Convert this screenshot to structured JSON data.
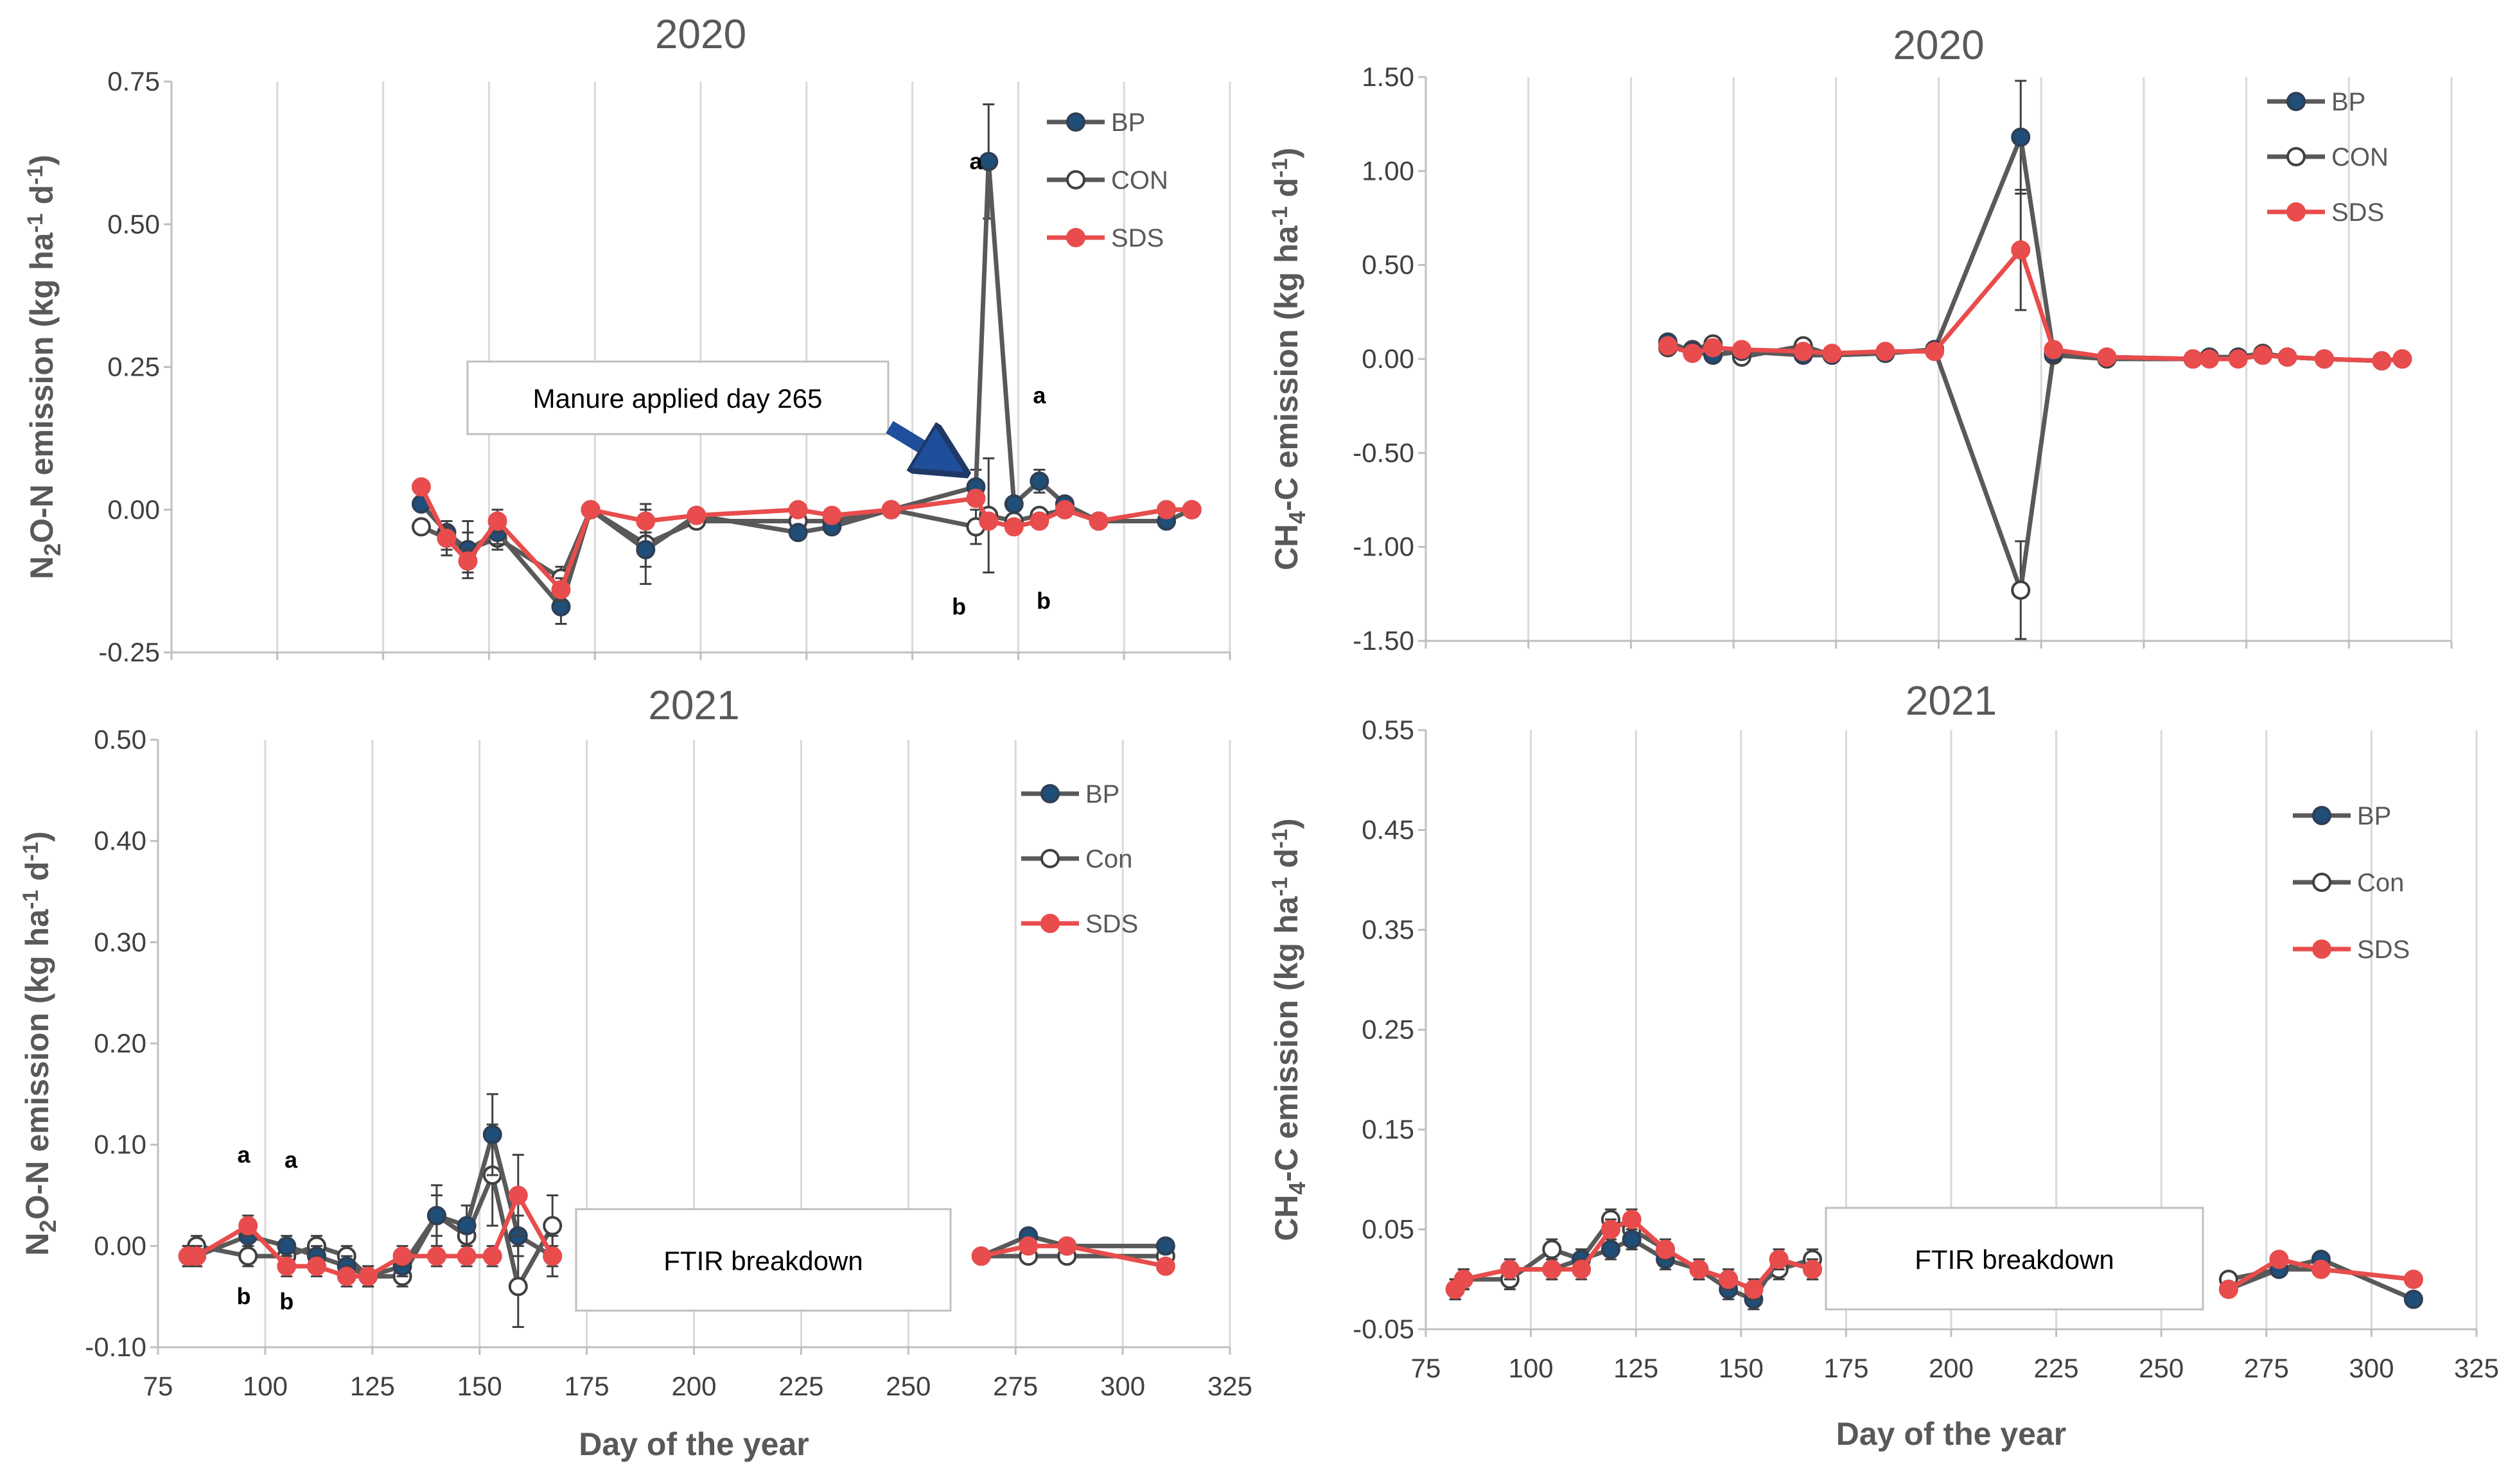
{
  "figure": {
    "x_axis_title": "Day of the year",
    "legend_colors": {
      "BP": "#1F4E79",
      "CON": "#404040",
      "SDS": "#E84C4C"
    },
    "line_colors": {
      "BP": "#595959",
      "CON": "#595959",
      "SDS": "#E84C4C"
    }
  },
  "chart_data": [
    {
      "id": "n2o-2020",
      "type": "line",
      "title": "2020",
      "ylabel_html": "N<tspan font-size='36' dy='12'>2</tspan><tspan dy='-12'>O-N  emission (kg ha</tspan><tspan font-size='34' dy='-16'>-1</tspan><tspan dy='16'> d</tspan><tspan font-size='34' dy='-16'>-1</tspan><tspan dy='16'>)</tspan>",
      "xlim": [
        75,
        325
      ],
      "ylim": [
        -0.25,
        0.75
      ],
      "yticks": [
        -0.25,
        0.0,
        0.25,
        0.5,
        0.75
      ],
      "ytick_labels": [
        "-0.25",
        "0.00",
        "0.25",
        "0.50",
        "0.75"
      ],
      "xticks": [
        75,
        100,
        125,
        150,
        175,
        200,
        225,
        250,
        275,
        300,
        325
      ],
      "xtick_labels": [],
      "legend": [
        "BP",
        "CON",
        "SDS"
      ],
      "series": [
        {
          "name": "BP",
          "x": [
            134,
            140,
            145,
            152,
            167,
            174,
            187,
            199,
            223,
            231,
            245,
            265,
            268,
            274,
            280,
            286,
            294,
            310,
            316
          ],
          "y": [
            0.01,
            -0.04,
            -0.07,
            -0.04,
            -0.17,
            0.0,
            -0.07,
            -0.01,
            -0.04,
            -0.03,
            0.0,
            0.04,
            0.61,
            0.01,
            0.05,
            0.01,
            -0.02,
            -0.02,
            0.0
          ],
          "err": [
            0.01,
            0.02,
            0.03,
            0.02,
            0.03,
            0.01,
            0.03,
            0.01,
            0.01,
            0.01,
            0.01,
            0.03,
            0.1,
            0.01,
            0.02,
            0.01,
            0.01,
            0.01,
            0.01
          ]
        },
        {
          "name": "CON",
          "x": [
            134,
            140,
            145,
            152,
            167,
            174,
            187,
            199,
            223,
            231,
            245,
            265,
            268,
            274,
            280,
            286,
            294,
            310,
            316
          ],
          "y": [
            -0.03,
            -0.05,
            -0.07,
            -0.05,
            -0.12,
            0.0,
            -0.06,
            -0.02,
            -0.02,
            -0.02,
            0.0,
            -0.03,
            -0.01,
            -0.02,
            -0.01,
            0.0,
            -0.02,
            0.0,
            0.0
          ],
          "err": [
            0.01,
            0.03,
            0.05,
            0.02,
            0.02,
            0.01,
            0.07,
            0.01,
            0.01,
            0.01,
            0.01,
            0.03,
            0.1,
            0.01,
            0.01,
            0.01,
            0.01,
            0.01,
            0.01
          ]
        },
        {
          "name": "SDS",
          "x": [
            134,
            140,
            145,
            152,
            167,
            174,
            187,
            199,
            223,
            231,
            245,
            265,
            268,
            274,
            280,
            286,
            294,
            310,
            316
          ],
          "y": [
            0.04,
            -0.05,
            -0.09,
            -0.02,
            -0.14,
            0.0,
            -0.02,
            -0.01,
            0.0,
            -0.01,
            0.0,
            0.02,
            -0.02,
            -0.03,
            -0.02,
            0.0,
            -0.02,
            0.0,
            0.0
          ],
          "err": [
            0.01,
            0.02,
            0.02,
            0.02,
            0.02,
            0.01,
            0.02,
            0.01,
            0.01,
            0.01,
            0.01,
            0.01,
            0.01,
            0.01,
            0.01,
            0.01,
            0.01,
            0.01,
            0.01
          ]
        }
      ],
      "annotations": [
        {
          "text": "a",
          "x": 265,
          "y": 0.61
        },
        {
          "text": "a",
          "x": 280,
          "y": 0.2
        },
        {
          "text": "b",
          "x": 261,
          "y": -0.17
        },
        {
          "text": "b",
          "x": 281,
          "y": -0.16
        }
      ],
      "callout": {
        "text": "Manure applied day 265",
        "arrow_to_day": 265,
        "arrow_to_y": 0.07
      }
    },
    {
      "id": "ch4-2020",
      "type": "line",
      "title": "2020",
      "ylabel_html": "CH<tspan font-size='36' dy='12'>4</tspan><tspan dy='-12'>-C  emission (kg ha</tspan><tspan font-size='34' dy='-16'>-1</tspan><tspan dy='16'> d</tspan><tspan font-size='34' dy='-16'>-1</tspan><tspan dy='16'>)</tspan>",
      "xlim": [
        75,
        325
      ],
      "ylim": [
        -1.5,
        1.5
      ],
      "yticks": [
        -1.5,
        -1.0,
        -0.5,
        0.0,
        0.5,
        1.0,
        1.5
      ],
      "ytick_labels": [
        "-1.50",
        "-1.00",
        "-0.50",
        "0.00",
        "0.50",
        "1.00",
        "1.50"
      ],
      "xticks": [
        75,
        100,
        125,
        150,
        175,
        200,
        225,
        250,
        275,
        300,
        325
      ],
      "xtick_labels": [],
      "legend": [
        "BP",
        "CON",
        "SDS"
      ],
      "series": [
        {
          "name": "BP",
          "x": [
            134,
            140,
            145,
            152,
            167,
            174,
            187,
            199,
            220,
            228,
            241,
            262,
            266,
            273,
            279,
            285,
            294,
            308,
            313
          ],
          "y": [
            0.09,
            0.04,
            0.02,
            0.04,
            0.02,
            0.02,
            0.03,
            0.05,
            1.18,
            0.03,
            0.01,
            0.0,
            0.01,
            0.01,
            0.02,
            0.01,
            0.0,
            -0.01,
            0.0
          ],
          "err": [
            0.02,
            0.01,
            0.01,
            0.01,
            0.01,
            0.01,
            0.01,
            0.01,
            0.3,
            0.01,
            0.01,
            0.01,
            0.01,
            0.01,
            0.01,
            0.01,
            0.01,
            0.01,
            0.01
          ]
        },
        {
          "name": "CON",
          "x": [
            134,
            140,
            145,
            152,
            167,
            174,
            187,
            199,
            220,
            228,
            241,
            262,
            266,
            273,
            279,
            285,
            294,
            308,
            313
          ],
          "y": [
            0.06,
            0.05,
            0.08,
            0.01,
            0.07,
            0.02,
            0.03,
            0.05,
            -1.23,
            0.02,
            0.0,
            0.0,
            0.01,
            0.01,
            0.03,
            0.01,
            0.0,
            -0.01,
            0.0
          ],
          "err": [
            0.02,
            0.01,
            0.01,
            0.01,
            0.01,
            0.01,
            0.01,
            0.01,
            0.26,
            0.01,
            0.01,
            0.01,
            0.01,
            0.01,
            0.01,
            0.01,
            0.01,
            0.01,
            0.01
          ]
        },
        {
          "name": "SDS",
          "x": [
            134,
            140,
            145,
            152,
            167,
            174,
            187,
            199,
            220,
            228,
            241,
            262,
            266,
            273,
            279,
            285,
            294,
            308,
            313
          ],
          "y": [
            0.07,
            0.03,
            0.06,
            0.05,
            0.04,
            0.03,
            0.04,
            0.04,
            0.58,
            0.05,
            0.01,
            0.0,
            0.0,
            0.0,
            0.02,
            0.01,
            0.0,
            -0.01,
            0.0
          ],
          "err": [
            0.01,
            0.01,
            0.01,
            0.01,
            0.01,
            0.01,
            0.01,
            0.01,
            0.32,
            0.01,
            0.01,
            0.01,
            0.01,
            0.01,
            0.01,
            0.01,
            0.01,
            0.01,
            0.01
          ]
        }
      ]
    },
    {
      "id": "n2o-2021",
      "type": "line",
      "title": "2021",
      "ylabel_html": "N<tspan font-size='36' dy='12'>2</tspan><tspan dy='-12'>O-N  emission (kg ha</tspan><tspan font-size='34' dy='-16'>-1</tspan><tspan dy='16'> d</tspan><tspan font-size='34' dy='-16'>-1</tspan><tspan dy='16'>)</tspan>",
      "xlabel": "Day of the year",
      "xlim": [
        75,
        325
      ],
      "ylim": [
        -0.1,
        0.5
      ],
      "yticks": [
        -0.1,
        0.0,
        0.1,
        0.2,
        0.3,
        0.4,
        0.5
      ],
      "ytick_labels": [
        "-0.10",
        "0.00",
        "0.10",
        "0.20",
        "0.30",
        "0.40",
        "0.50"
      ],
      "xticks": [
        75,
        100,
        125,
        150,
        175,
        200,
        225,
        250,
        275,
        300,
        325
      ],
      "xtick_labels": [
        "75",
        "100",
        "125",
        "150",
        "175",
        "200",
        "225",
        "250",
        "275",
        "300",
        "325"
      ],
      "legend": [
        "BP",
        "Con",
        "SDS"
      ],
      "series": [
        {
          "name": "BP",
          "x": [
            82,
            84,
            96,
            105,
            112,
            119,
            124,
            132,
            140,
            147,
            153,
            159,
            167
          ],
          "y": [
            -0.01,
            -0.01,
            0.01,
            0.0,
            -0.01,
            -0.02,
            -0.03,
            -0.02,
            0.03,
            0.02,
            0.11,
            0.01,
            -0.01
          ],
          "err": [
            0.01,
            0.01,
            0.01,
            0.01,
            0.01,
            0.01,
            0.01,
            0.01,
            0.02,
            0.02,
            0.04,
            0.02,
            0.02
          ]
        },
        {
          "name": "Con",
          "x": [
            82,
            84,
            96,
            105,
            112,
            119,
            124,
            132,
            140,
            147,
            153,
            159,
            167
          ],
          "y": [
            -0.01,
            0.0,
            -0.01,
            -0.01,
            0.0,
            -0.01,
            -0.03,
            -0.03,
            0.03,
            0.01,
            0.07,
            -0.04,
            0.02
          ],
          "err": [
            0.01,
            0.01,
            0.01,
            0.01,
            0.01,
            0.01,
            0.01,
            0.01,
            0.03,
            0.01,
            0.05,
            0.04,
            0.03
          ]
        },
        {
          "name": "SDS",
          "x": [
            82,
            84,
            96,
            105,
            112,
            119,
            124,
            132,
            140,
            147,
            153,
            159,
            167
          ],
          "y": [
            -0.01,
            -0.01,
            0.02,
            -0.02,
            -0.02,
            -0.03,
            -0.03,
            -0.01,
            -0.01,
            -0.01,
            -0.01,
            0.05,
            -0.01
          ],
          "err": [
            0.01,
            0.01,
            0.01,
            0.01,
            0.01,
            0.01,
            0.01,
            0.01,
            0.01,
            0.01,
            0.01,
            0.04,
            0.01
          ]
        }
      ],
      "series_late": [
        {
          "name": "BP",
          "x": [
            267,
            278,
            287,
            310
          ],
          "y": [
            -0.01,
            0.01,
            0.0,
            0.0
          ]
        },
        {
          "name": "Con",
          "x": [
            267,
            278,
            287,
            310
          ],
          "y": [
            -0.01,
            -0.01,
            -0.01,
            -0.01
          ]
        },
        {
          "name": "SDS",
          "x": [
            267,
            278,
            287,
            310
          ],
          "y": [
            -0.01,
            0.0,
            0.0,
            -0.02
          ]
        }
      ],
      "annotations": [
        {
          "text": "a",
          "x": 95,
          "y": 0.09
        },
        {
          "text": "a",
          "x": 106,
          "y": 0.085
        },
        {
          "text": "b",
          "x": 95,
          "y": -0.05
        },
        {
          "text": "b",
          "x": 105,
          "y": -0.055
        }
      ],
      "breakdown_label": "FTIR breakdown"
    },
    {
      "id": "ch4-2021",
      "type": "line",
      "title": "2021",
      "ylabel_html": "CH<tspan font-size='36' dy='12'>4</tspan><tspan dy='-12'>-C  emission (kg ha</tspan><tspan font-size='34' dy='-16'>-1</tspan><tspan dy='16'> d</tspan><tspan font-size='34' dy='-16'>-1</tspan><tspan dy='16'>)</tspan>",
      "xlabel": "Day of the year",
      "xlim": [
        75,
        325
      ],
      "ylim": [
        -0.05,
        0.55
      ],
      "yticks": [
        -0.05,
        0.05,
        0.15,
        0.25,
        0.35,
        0.45,
        0.55
      ],
      "ytick_labels": [
        "-0.05",
        "0.05",
        "0.15",
        "0.25",
        "0.35",
        "0.45",
        "0.55"
      ],
      "xticks": [
        75,
        100,
        125,
        150,
        175,
        200,
        225,
        250,
        275,
        300,
        325
      ],
      "xtick_labels": [
        "75",
        "100",
        "125",
        "150",
        "175",
        "200",
        "225",
        "250",
        "275",
        "300",
        "325"
      ],
      "legend": [
        "BP",
        "Con",
        "SDS"
      ],
      "series": [
        {
          "name": "BP",
          "x": [
            82,
            84,
            95,
            105,
            112,
            119,
            124,
            132,
            140,
            147,
            153,
            159,
            167
          ],
          "y": [
            -0.01,
            0.0,
            0.01,
            0.01,
            0.02,
            0.03,
            0.04,
            0.02,
            0.01,
            -0.01,
            -0.02,
            0.02,
            0.01
          ],
          "err": [
            0.01,
            0.01,
            0.01,
            0.01,
            0.01,
            0.01,
            0.01,
            0.01,
            0.01,
            0.01,
            0.01,
            0.01,
            0.01
          ]
        },
        {
          "name": "Con",
          "x": [
            82,
            84,
            95,
            105,
            112,
            119,
            124,
            132,
            140,
            147,
            153,
            159,
            167
          ],
          "y": [
            -0.01,
            0.0,
            0.0,
            0.03,
            0.02,
            0.06,
            0.05,
            0.03,
            0.01,
            0.0,
            -0.01,
            0.01,
            0.02
          ],
          "err": [
            0.01,
            0.01,
            0.01,
            0.01,
            0.01,
            0.01,
            0.01,
            0.01,
            0.01,
            0.01,
            0.01,
            0.01,
            0.01
          ]
        },
        {
          "name": "SDS",
          "x": [
            82,
            84,
            95,
            105,
            112,
            119,
            124,
            132,
            140,
            147,
            153,
            159,
            167
          ],
          "y": [
            -0.01,
            0.0,
            0.01,
            0.01,
            0.01,
            0.05,
            0.06,
            0.03,
            0.01,
            0.0,
            -0.01,
            0.02,
            0.01
          ],
          "err": [
            0.01,
            0.01,
            0.01,
            0.01,
            0.01,
            0.01,
            0.01,
            0.01,
            0.01,
            0.01,
            0.01,
            0.01,
            0.01
          ]
        }
      ],
      "series_late": [
        {
          "name": "BP",
          "x": [
            266,
            278,
            288,
            310
          ],
          "y": [
            -0.01,
            0.01,
            0.02,
            -0.02
          ]
        },
        {
          "name": "Con",
          "x": [
            266,
            278,
            288,
            310
          ],
          "y": [
            0.0,
            0.01,
            0.01,
            0.0
          ]
        },
        {
          "name": "SDS",
          "x": [
            266,
            278,
            288,
            310
          ],
          "y": [
            -0.01,
            0.02,
            0.01,
            0.0
          ]
        }
      ],
      "breakdown_label": "FTIR breakdown"
    }
  ]
}
